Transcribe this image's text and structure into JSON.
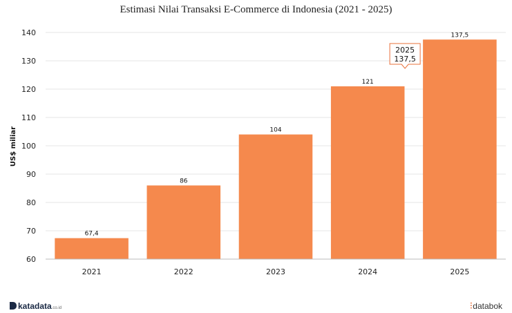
{
  "chart_data": {
    "type": "bar",
    "title": "Estimasi Nilai Transaksi E-Commerce di Indonesia (2021 - 2025)",
    "xlabel": "",
    "ylabel": "US$ miliar",
    "categories": [
      "2021",
      "2022",
      "2023",
      "2024",
      "2025"
    ],
    "values": [
      67.4,
      86,
      104,
      121,
      137.5
    ],
    "value_labels": [
      "67,4",
      "86",
      "104",
      "121",
      "137,5"
    ],
    "ylim": [
      60,
      140
    ],
    "yticks": [
      60,
      70,
      80,
      90,
      100,
      110,
      120,
      130,
      140
    ],
    "grid": true,
    "bar_color": "#f5894d",
    "tooltip": {
      "category": "2025",
      "value": "137,5"
    }
  },
  "footer": {
    "left_brand": "katadata",
    "left_domain": ".co.id",
    "right_brand": "databok"
  }
}
